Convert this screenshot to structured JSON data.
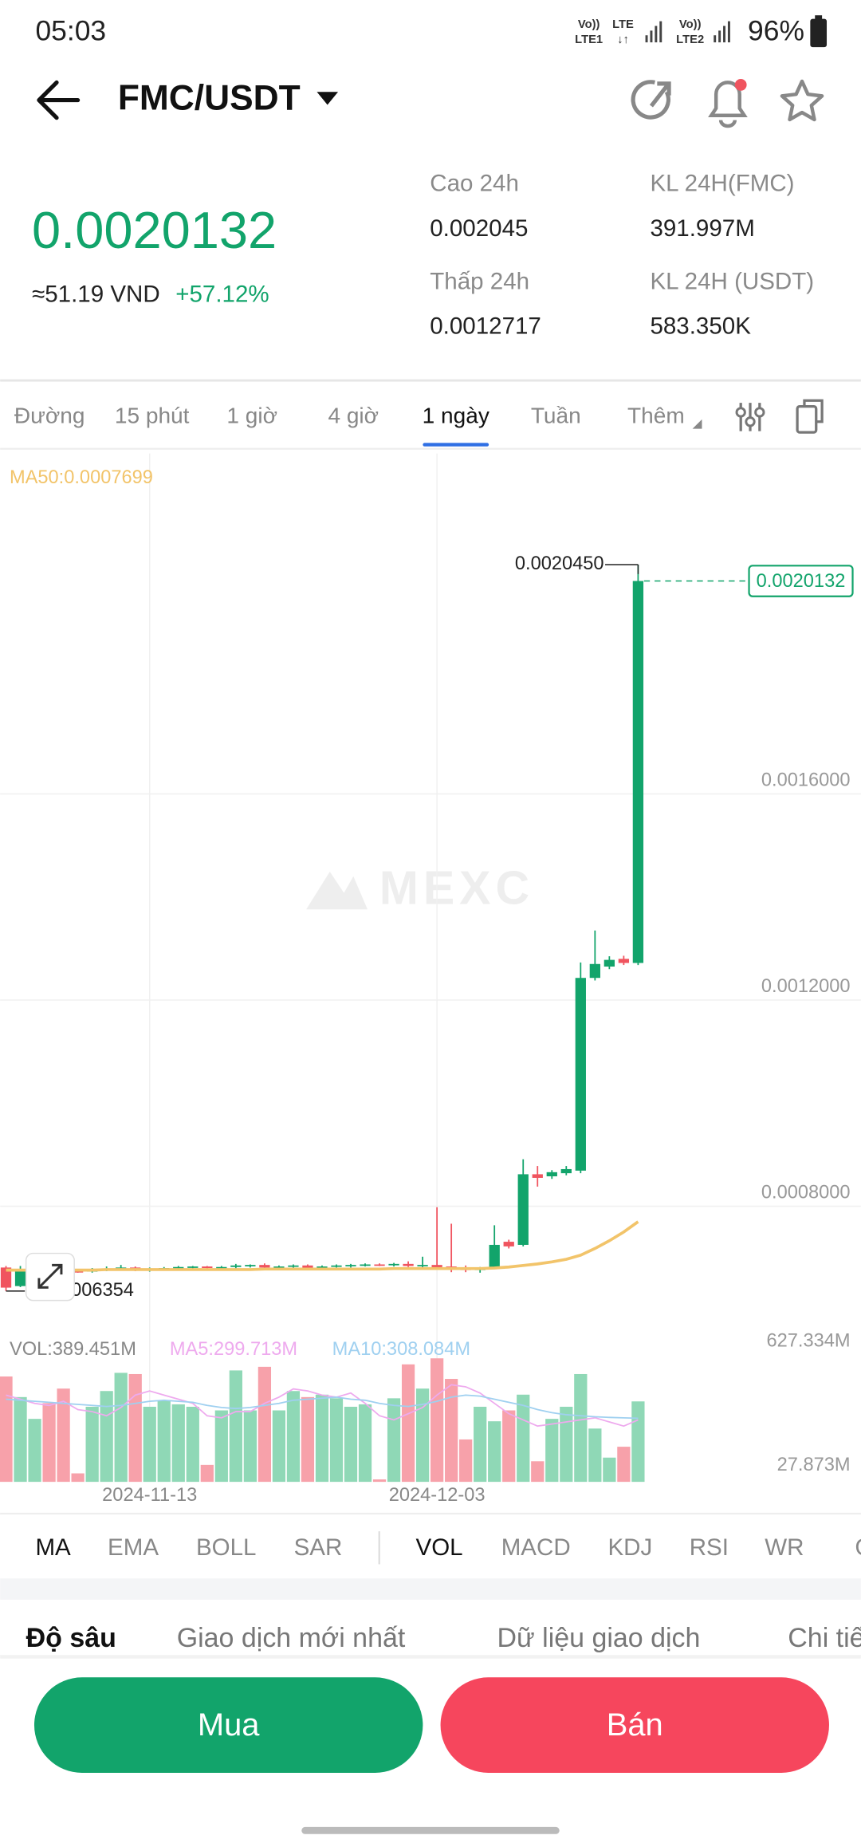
{
  "status": {
    "time": "05:03",
    "sim1": [
      "Vo))",
      "LTE1"
    ],
    "lte": [
      "LTE",
      "↓↑"
    ],
    "sim2": [
      "Vo))",
      "LTE2"
    ],
    "battery": "96%"
  },
  "header": {
    "pair": "FMC/USDT"
  },
  "ticker": {
    "price": "0.0020132",
    "fiat": "≈51.19 VND",
    "change": "+57.12%",
    "stats": [
      {
        "label": "Cao 24h",
        "value": "0.002045"
      },
      {
        "label": "KL 24H(FMC)",
        "value": "391.997M"
      },
      {
        "label": "Thấp 24h",
        "value": "0.0012717"
      },
      {
        "label": "KL 24H (USDT)",
        "value": "583.350K"
      }
    ]
  },
  "intervals": {
    "tabs": [
      "Đường",
      "15 phút",
      "1 giờ",
      "4 giờ",
      "1 ngày",
      "Tuần",
      "Thêm"
    ],
    "active": 4
  },
  "chart_data": {
    "type": "candlestick",
    "watermark": "MEXC",
    "ma_label": "MA50:0.0007699",
    "categories": [
      null,
      null,
      null,
      null,
      null,
      null,
      null,
      null,
      null,
      null,
      "2024-11-13",
      null,
      null,
      null,
      null,
      null,
      null,
      null,
      null,
      null,
      null,
      null,
      null,
      null,
      null,
      null,
      null,
      null,
      null,
      null,
      "2024-12-03",
      null,
      null,
      null,
      null,
      null,
      null,
      null,
      null,
      null,
      null,
      null,
      null,
      null,
      null
    ],
    "open": [
      0.000681,
      0.000645,
      0.000678,
      0.00068,
      0.000676,
      0.000674,
      0.000673,
      0.000677,
      0.000679,
      0.000681,
      0.000676,
      0.000679,
      0.00068,
      0.000682,
      0.000683,
      0.00068,
      0.000682,
      0.000684,
      0.000686,
      0.000681,
      0.000683,
      0.000685,
      0.00068,
      0.000683,
      0.000685,
      0.000686,
      0.000687,
      0.000686,
      0.000688,
      0.000684,
      0.000686,
      0.000683,
      0.000679,
      0.000676,
      0.000681,
      0.000731,
      0.000725,
      0.000862,
      0.000858,
      0.000864,
      0.000869,
      0.001243,
      0.001265,
      0.00128,
      0.001272
    ],
    "high": [
      0.000684,
      0.000684,
      0.000683,
      0.000683,
      0.00068,
      0.000677,
      0.00068,
      0.000683,
      0.000686,
      0.000683,
      0.000681,
      0.000682,
      0.000684,
      0.000684,
      0.000684,
      0.000684,
      0.000688,
      0.000687,
      0.000689,
      0.000685,
      0.000687,
      0.000687,
      0.000685,
      0.000687,
      0.000688,
      0.000689,
      0.000689,
      0.00069,
      0.000693,
      0.000702,
      0.000798,
      0.000766,
      0.000685,
      0.000682,
      0.000763,
      0.000735,
      0.000891,
      0.000878,
      0.00087,
      0.000878,
      0.001273,
      0.001335,
      0.001285,
      0.001286,
      0.002045
    ],
    "low": [
      0.0006354,
      0.000643,
      0.000672,
      0.000673,
      0.000671,
      0.000671,
      0.000671,
      0.000674,
      0.000676,
      0.000674,
      0.000673,
      0.000675,
      0.000677,
      0.000678,
      0.000678,
      0.000677,
      0.000679,
      0.000681,
      0.000679,
      0.000678,
      0.00068,
      0.000679,
      0.000677,
      0.000681,
      0.000681,
      0.000683,
      0.000684,
      0.000683,
      0.000682,
      0.000681,
      0.00068,
      0.000672,
      0.000672,
      0.000671,
      0.000679,
      0.000718,
      0.000722,
      0.000838,
      0.000853,
      0.00086,
      0.000864,
      0.001238,
      0.00126,
      0.001268,
      0.001268
    ],
    "close": [
      0.000642,
      0.000678,
      0.00068,
      0.000676,
      0.000674,
      0.000673,
      0.000677,
      0.000679,
      0.000681,
      0.000676,
      0.000679,
      0.00068,
      0.000682,
      0.000683,
      0.00068,
      0.000682,
      0.000685,
      0.000686,
      0.000681,
      0.000683,
      0.000685,
      0.00068,
      0.000683,
      0.000685,
      0.000686,
      0.000687,
      0.000686,
      0.000688,
      0.000684,
      0.000686,
      0.000679,
      0.000679,
      0.000676,
      0.000681,
      0.000725,
      0.000722,
      0.000862,
      0.000855,
      0.000866,
      0.000872,
      0.001243,
      0.00127,
      0.001278,
      0.001272,
      0.0020132
    ],
    "ma50": [
      0.000676,
      0.000676,
      0.000676,
      0.000676,
      0.000676,
      0.000676,
      0.000676,
      0.000677,
      0.000677,
      0.000677,
      0.000677,
      0.000677,
      0.000677,
      0.000677,
      0.000677,
      0.000677,
      0.000677,
      0.000677,
      0.000678,
      0.000678,
      0.000678,
      0.000678,
      0.000678,
      0.000678,
      0.000678,
      0.000678,
      0.000678,
      0.000679,
      0.000679,
      0.000679,
      0.000679,
      0.000679,
      0.000679,
      0.000679,
      0.00068,
      0.000682,
      0.000685,
      0.000688,
      0.000692,
      0.000697,
      0.000705,
      0.000718,
      0.000733,
      0.00075,
      0.0007699
    ],
    "up_color": "#12a46b",
    "down_color": "#f0545f",
    "ma50_color": "#f2c46a",
    "ylim": [
      0.0005577,
      0.0022606
    ],
    "yticks": [
      {
        "value": 0.0008,
        "label": "0.0008000"
      },
      {
        "value": 0.0012,
        "label": "0.0012000"
      },
      {
        "value": 0.0016,
        "label": "0.0016000"
      }
    ],
    "high_marker": {
      "value": 0.002045,
      "label": "0.0020450"
    },
    "low_marker": 0.0006354,
    "last_price": 0.0020132,
    "volume": {
      "vol_label": "VOL:389.451M",
      "ma5_label": "MA5:299.713M",
      "ma10_label": "MA10:308.084M",
      "up_color": "#8fd8b6",
      "down_color": "#f7a1aa",
      "ma5_color": "#eeaaee",
      "ma10_color": "#9fd0f0",
      "ylim": [
        0,
        627.334
      ],
      "yticks": [
        {
          "value": 627.334,
          "label": "627.334M"
        },
        {
          "value": 27.873,
          "label": "27.873M"
        }
      ],
      "values": [
        510.1,
        410.4,
        304.9,
        381.1,
        451.5,
        41,
        363.5,
        439.7,
        527.7,
        521.8,
        363.5,
        392.8,
        375.2,
        363.5,
        82.1,
        345.9,
        539.4,
        345.9,
        557,
        345.9,
        439.7,
        410.4,
        422.1,
        404.5,
        363.5,
        375.2,
        11.7,
        404.5,
        568.7,
        451.5,
        598,
        498.4,
        205.2,
        363.5,
        293.2,
        345.9,
        422.1,
        99.7,
        304.9,
        363.5,
        521.8,
        258,
        117.3,
        170,
        389.451
      ],
      "ma5": [
        420,
        400,
        380,
        370,
        390,
        350,
        340,
        320,
        360,
        420,
        440,
        420,
        400,
        380,
        320,
        310,
        340,
        340,
        380,
        410,
        450,
        440,
        420,
        410,
        430,
        380,
        320,
        300,
        330,
        360,
        420,
        470,
        460,
        430,
        380,
        330,
        300,
        270,
        280,
        290,
        300,
        310,
        290,
        270,
        299.713
      ],
      "ma10": [
        400,
        395,
        390,
        385,
        380,
        375,
        370,
        365,
        370,
        380,
        390,
        395,
        390,
        385,
        370,
        360,
        355,
        360,
        370,
        380,
        395,
        400,
        405,
        410,
        400,
        395,
        380,
        370,
        365,
        375,
        390,
        410,
        420,
        415,
        400,
        385,
        370,
        350,
        335,
        325,
        320,
        315,
        312,
        310,
        308.084
      ]
    }
  },
  "indicators": {
    "main": [
      "MA",
      "EMA",
      "BOLL",
      "SAR"
    ],
    "sub": [
      "VOL",
      "MACD",
      "KDJ",
      "RSI",
      "WR",
      "OBV"
    ],
    "active_main": 0,
    "active_sub": 0
  },
  "bottom_tabs": {
    "tabs": [
      "Độ sâu",
      "Giao dịch mới nhất",
      "Dữ liệu giao dịch",
      "Chi tiết"
    ],
    "active": 0
  },
  "actions": {
    "buy": "Mua",
    "sell": "Bán"
  }
}
